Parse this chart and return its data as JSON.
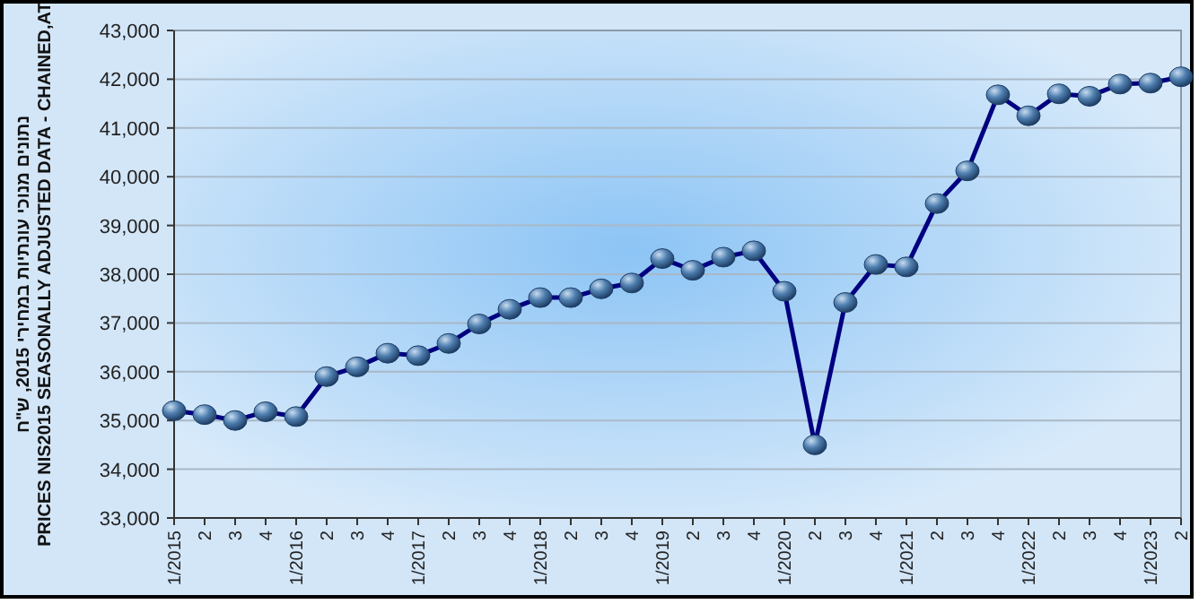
{
  "chart_data": {
    "type": "line",
    "ylabel": "נתונים מנוכי עונתיות במחירי 2015, ש\"ח\nPRICES NIS2015 SEASONALLY ADJUSTED DATA - CHAINED,AT",
    "categories": [
      "1/2015",
      "2",
      "3",
      "4",
      "1/2016",
      "2",
      "3",
      "4",
      "1/2017",
      "2",
      "3",
      "4",
      "1/2018",
      "2",
      "3",
      "4",
      "1/2019",
      "2",
      "3",
      "4",
      "1/2020",
      "2",
      "3",
      "4",
      "1/2021",
      "2",
      "3",
      "4",
      "1/2022",
      "2",
      "3",
      "4",
      "1/2023",
      "2"
    ],
    "series": [
      {
        "color": "#000080",
        "values": [
          35200,
          35120,
          35000,
          35180,
          35080,
          35900,
          36100,
          36380,
          36330,
          36580,
          36980,
          37280,
          37520,
          37520,
          37700,
          37820,
          38320,
          38080,
          38350,
          38480,
          37650,
          34500,
          37420,
          38200,
          38150,
          39450,
          40120,
          41680,
          41250,
          41700,
          41650,
          41900,
          41920,
          42050
        ]
      }
    ],
    "ylim": [
      33000,
      43000
    ],
    "yticks": [
      {
        "value": 33000,
        "label": "33,000"
      },
      {
        "value": 34000,
        "label": "34,000"
      },
      {
        "value": 35000,
        "label": "35,000"
      },
      {
        "value": 36000,
        "label": "36,000"
      },
      {
        "value": 37000,
        "label": "37,000"
      },
      {
        "value": 38000,
        "label": "38,000"
      },
      {
        "value": 39000,
        "label": "39,000"
      },
      {
        "value": 40000,
        "label": "40,000"
      },
      {
        "value": 41000,
        "label": "41,000"
      },
      {
        "value": 42000,
        "label": "42,000"
      },
      {
        "value": 43000,
        "label": "43,000"
      }
    ],
    "grid": "y",
    "marker": "circle",
    "line_style": "solid"
  }
}
